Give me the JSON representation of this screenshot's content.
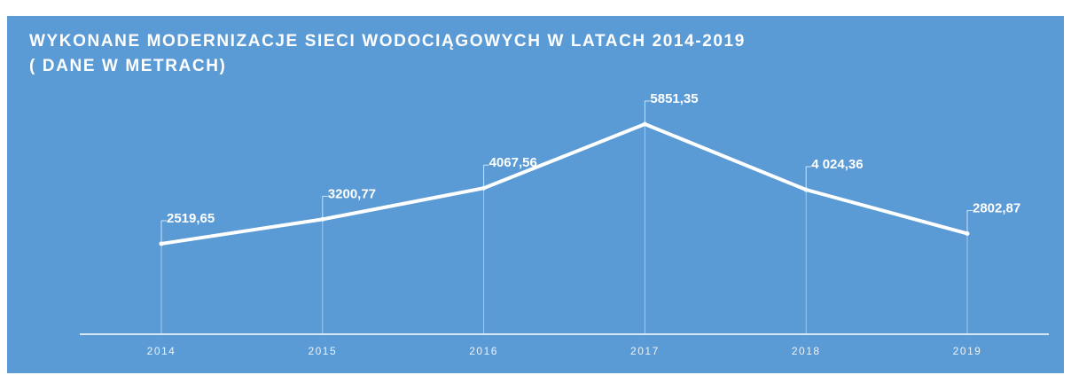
{
  "chart_data": {
    "type": "line",
    "title": "WYKONANE MODERNIZACJE SIECI WODOCIĄGOWYCH W LATACH 2014-2019",
    "subtitle": "( DANE W METRACH)",
    "categories": [
      "2014",
      "2015",
      "2016",
      "2017",
      "2018",
      "2019"
    ],
    "values": [
      2519.65,
      3200.77,
      4067.56,
      5851.35,
      4024.36,
      2802.87
    ],
    "value_labels": [
      "2519,65",
      "3200,77",
      "4067,56",
      "5851,35",
      "4 024,36",
      "2802,87"
    ],
    "color": "#ffffff",
    "background": "#5b9bd5"
  }
}
